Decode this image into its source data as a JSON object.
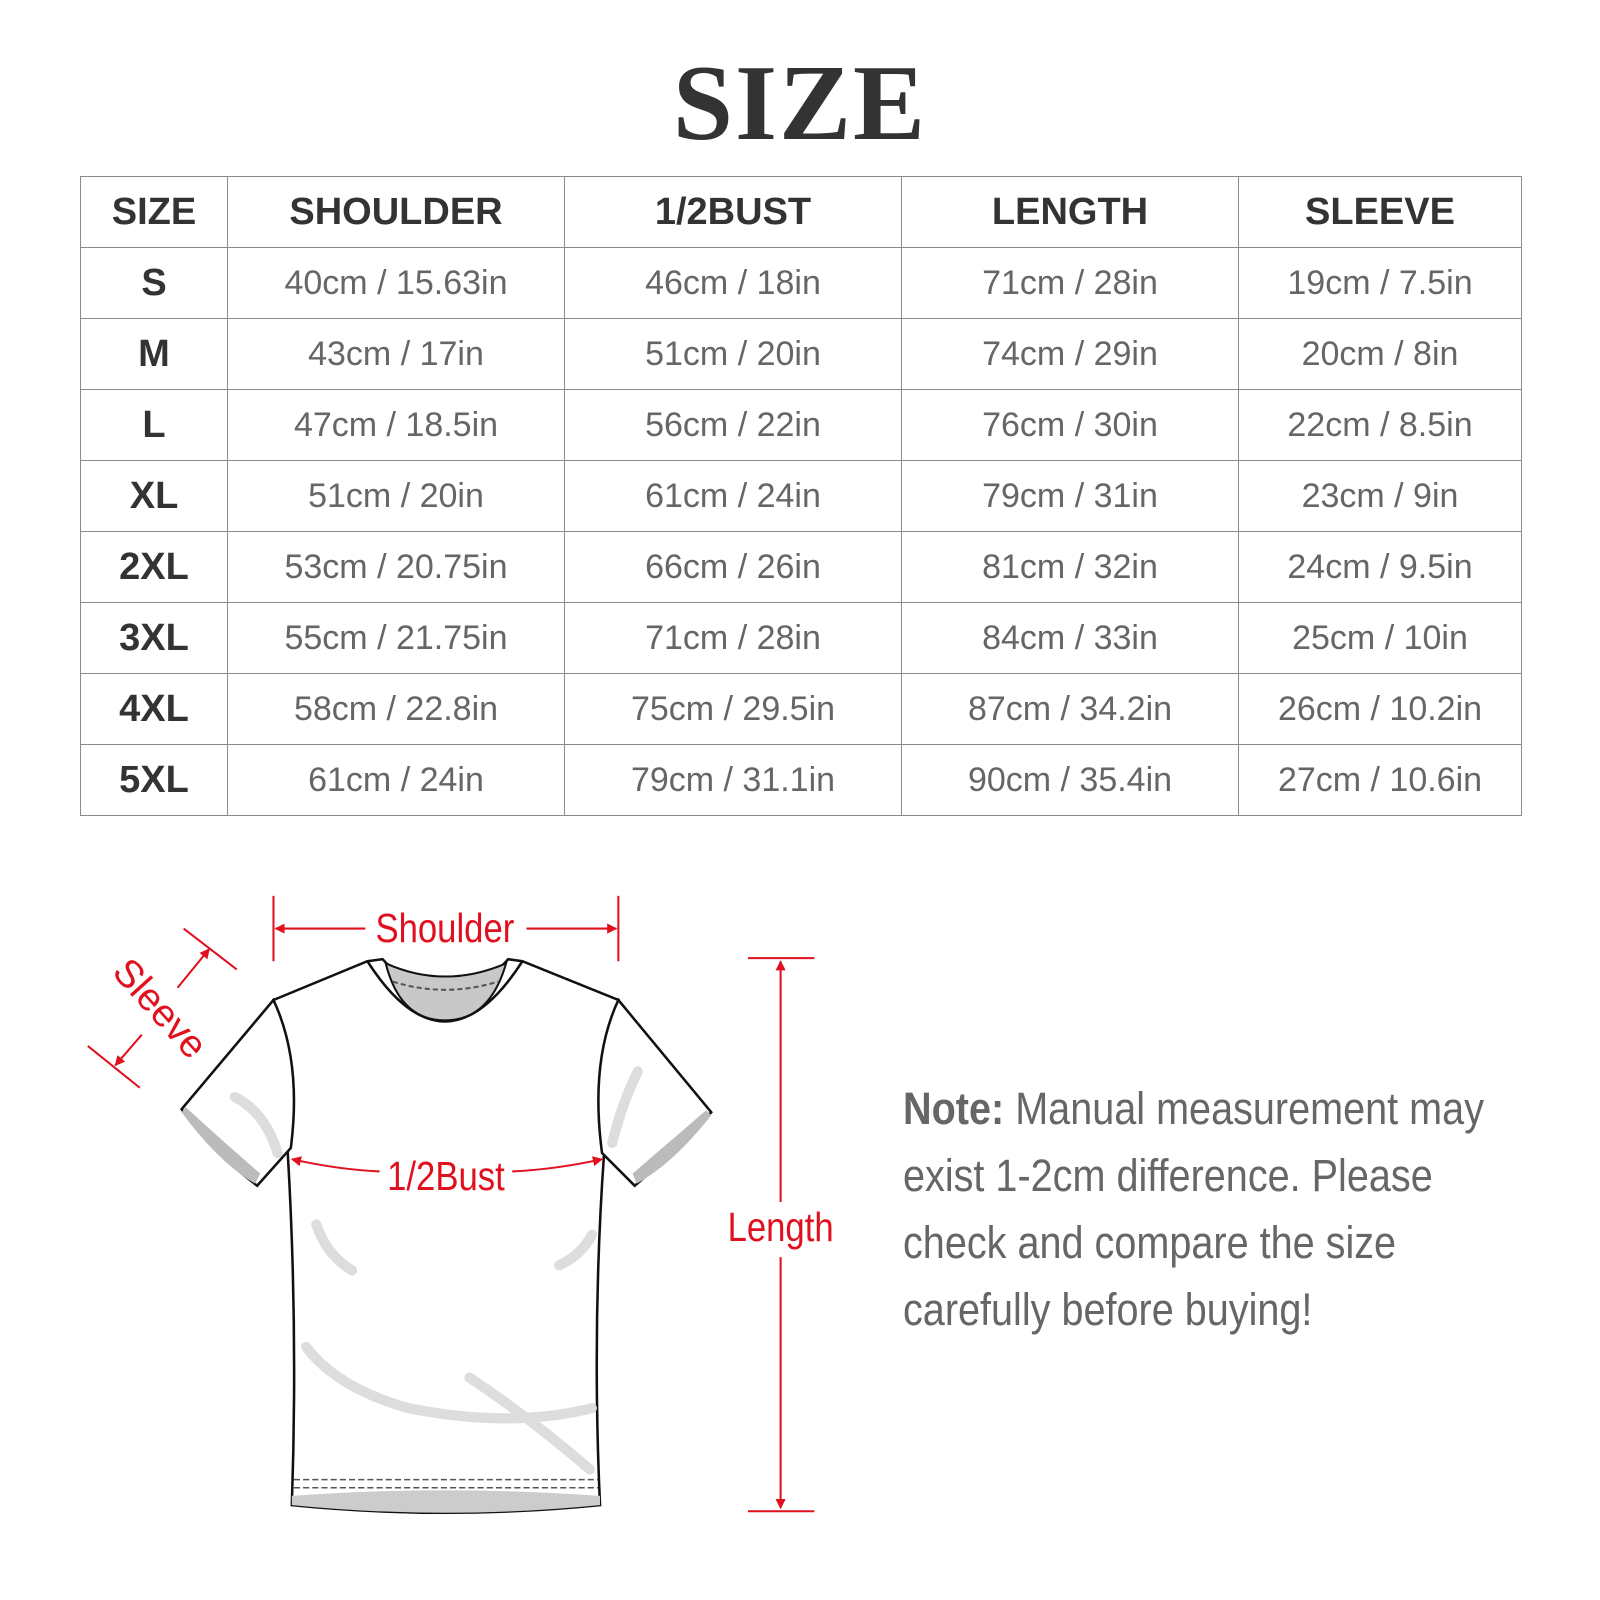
{
  "title": "SIZE",
  "table": {
    "headers": [
      "SIZE",
      "SHOULDER",
      "1/2BUST",
      "LENGTH",
      "SLEEVE"
    ],
    "rows": [
      [
        "S",
        "40cm / 15.63in",
        "46cm / 18in",
        "71cm / 28in",
        "19cm / 7.5in"
      ],
      [
        "M",
        "43cm / 17in",
        "51cm / 20in",
        "74cm / 29in",
        "20cm / 8in"
      ],
      [
        "L",
        "47cm / 18.5in",
        "56cm / 22in",
        "76cm / 30in",
        "22cm / 8.5in"
      ],
      [
        "XL",
        "51cm / 20in",
        "61cm / 24in",
        "79cm / 31in",
        "23cm / 9in"
      ],
      [
        "2XL",
        "53cm / 20.75in",
        "66cm / 26in",
        "81cm / 32in",
        "24cm / 9.5in"
      ],
      [
        "3XL",
        "55cm / 21.75in",
        "71cm / 28in",
        "84cm / 33in",
        "25cm / 10in"
      ],
      [
        "4XL",
        "58cm / 22.8in",
        "75cm / 29.5in",
        "87cm / 34.2in",
        "26cm / 10.2in"
      ],
      [
        "5XL",
        "61cm / 24in",
        "79cm / 31.1in",
        "90cm / 35.4in",
        "27cm / 10.6in"
      ]
    ]
  },
  "diagram": {
    "labels": {
      "shoulder": "Shoulder",
      "sleeve": "Sleeve",
      "bust": "1/2Bust",
      "length": "Length"
    },
    "accent_color": "#e0101e"
  },
  "note": {
    "label": "Note:",
    "text": " Manual measurement may exist 1-2cm difference. Please check and compare the size carefully before buying!"
  }
}
